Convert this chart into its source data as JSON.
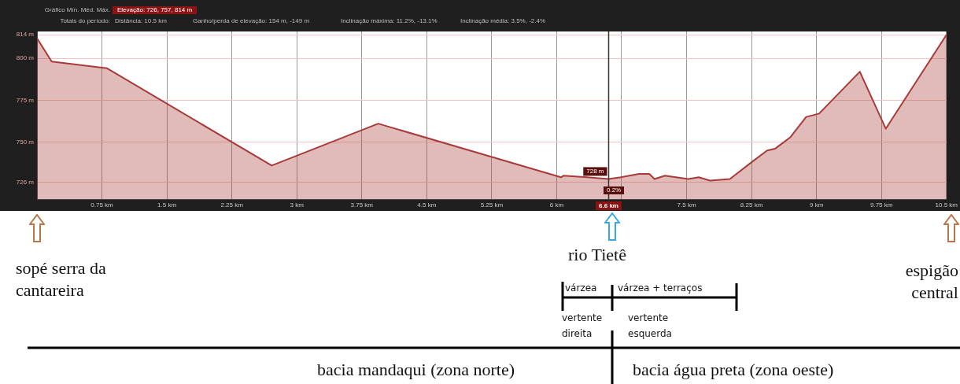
{
  "chart_data": {
    "type": "area",
    "x": [
      0,
      0.17,
      0.81,
      2.71,
      3.94,
      6.05,
      6.08,
      6.35,
      6.6,
      6.74,
      6.95,
      7.07,
      7.13,
      7.25,
      7.52,
      7.64,
      7.77,
      8.0,
      8.25,
      8.43,
      8.52,
      8.7,
      8.88,
      9.03,
      9.5,
      9.8,
      10.5
    ],
    "series": [
      {
        "color": "#a83a3a",
        "values": [
          812,
          798,
          794,
          736,
          761,
          729,
          730,
          729,
          728,
          729,
          731,
          731,
          728,
          730,
          728,
          729,
          727,
          728,
          738,
          745,
          746,
          753,
          765,
          767,
          792,
          758,
          814
        ]
      }
    ],
    "xlim": [
      0,
      10.5
    ],
    "xticks": [
      {
        "value": 0.75,
        "label": "0.75 km"
      },
      {
        "value": 1.5,
        "label": "1.5 km"
      },
      {
        "value": 2.25,
        "label": "2.25 km"
      },
      {
        "value": 3,
        "label": "3 km"
      },
      {
        "value": 3.75,
        "label": "3.75 km"
      },
      {
        "value": 4.5,
        "label": "4.5 km"
      },
      {
        "value": 5.25,
        "label": "5.25 km"
      },
      {
        "value": 6,
        "label": "6 km"
      },
      {
        "value": 6.75,
        "label": null
      },
      {
        "value": 7.5,
        "label": "7.5 km"
      },
      {
        "value": 8.25,
        "label": "8.25 km"
      },
      {
        "value": 9,
        "label": "9 km"
      },
      {
        "value": 9.75,
        "label": "9.75 km"
      },
      {
        "value": 10.5,
        "label": "10.5 km"
      }
    ],
    "ylim": [
      716,
      816
    ],
    "yticks": [
      {
        "value": 726,
        "label": "726 m"
      },
      {
        "value": 750,
        "label": "750 m"
      },
      {
        "value": 775,
        "label": "775 m"
      },
      {
        "value": 800,
        "label": "800 m"
      },
      {
        "value": 814,
        "label": "814 m"
      }
    ],
    "grid": true,
    "marker": "none",
    "ref_lines": [
      {
        "axis": "x",
        "value": 6.6,
        "label": "6.6 km",
        "color": "#333333"
      }
    ],
    "annotations": [
      "Gráfico Mín. Méd. Máx.",
      "Elevação: 726, 757, 814 m",
      "Totais do período:",
      "Distância: 10.5 km",
      "Ganho/perda de elevação: 154 m, -149 m",
      "Inclinação máxima: 11.2%, -13.1%",
      "Inclinação média: 3.5%, -2.4%",
      {
        "text": "728 m",
        "x": 6.6,
        "y": 728
      },
      "0.2%",
      "sopé serra da cantareira",
      "rio Tietê",
      "espigão central",
      "várzea",
      "várzea + terraços",
      "vertente direita",
      "vertente esquerda",
      "bacia mandaqui (zona norte)",
      "bacia água preta (zona oeste)"
    ]
  }
}
